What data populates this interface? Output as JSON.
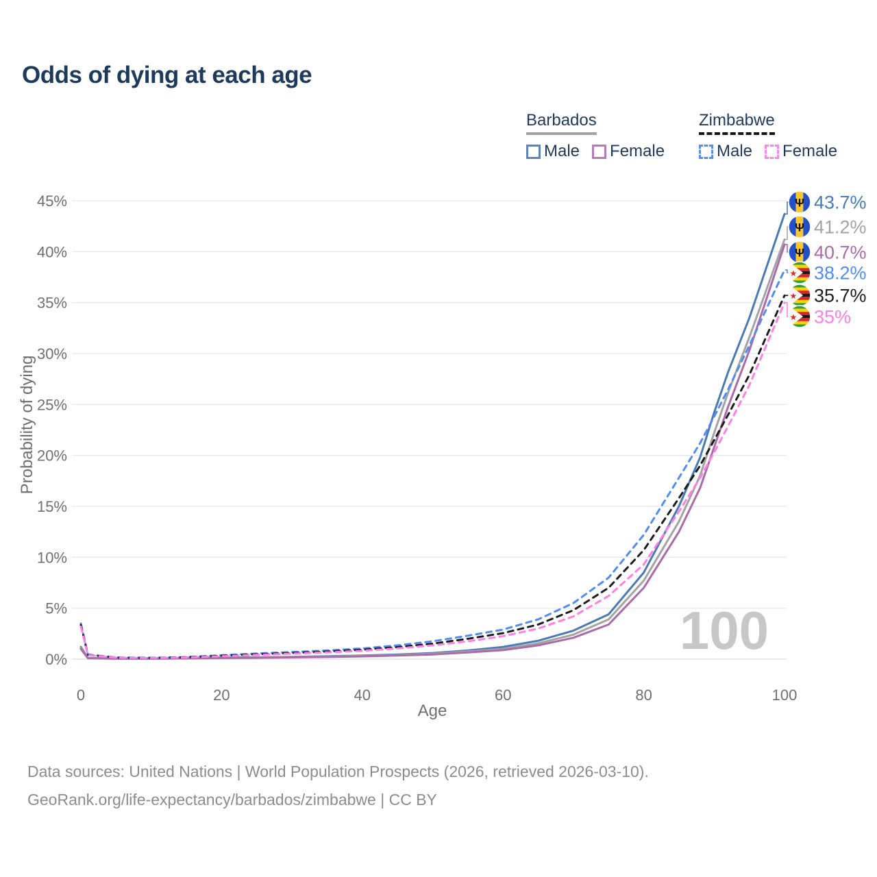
{
  "title": "Odds of dying at each age",
  "watermark": "100",
  "legend": {
    "groups": [
      {
        "label": "Barbados",
        "line_style": "solid",
        "underline_color": "#a2a2a2",
        "items": [
          {
            "label": "Male",
            "color": "#5b84bb"
          },
          {
            "label": "Female",
            "color": "#b87cb4"
          }
        ]
      },
      {
        "label": "Zimbabwe",
        "line_style": "dashed",
        "underline_color": "#161616",
        "items": [
          {
            "label": "Male",
            "color": "#5b8df0"
          },
          {
            "label": "Female",
            "color": "#fb85e8"
          }
        ]
      }
    ]
  },
  "footer": {
    "line1": "Data sources: United Nations | World Population Prospects (2026, retrieved 2026-03-10).",
    "line2": "GeoRank.org/life-expectancy/barbados/zimbabwe | CC BY"
  },
  "chart_data": {
    "type": "line",
    "title": "Odds of dying at each age",
    "xlabel": "Age",
    "ylabel": "Probability of dying",
    "xlim": [
      0,
      100
    ],
    "ylim": [
      0,
      45
    ],
    "grid": "horizontal",
    "legend_position": "top-right",
    "x_ticks": [
      0,
      20,
      40,
      60,
      80,
      100
    ],
    "x_tick_labels": [
      "0",
      "20",
      "40",
      "60",
      "80",
      "100"
    ],
    "y_ticks": [
      0,
      5,
      10,
      15,
      20,
      25,
      30,
      35,
      40,
      45
    ],
    "y_tick_labels": [
      "0%",
      "5%",
      "10%",
      "15%",
      "20%",
      "25%",
      "30%",
      "35%",
      "40%",
      "45%"
    ],
    "x": [
      0,
      1,
      5,
      10,
      15,
      20,
      25,
      30,
      35,
      40,
      45,
      50,
      55,
      60,
      65,
      70,
      75,
      80,
      85,
      88,
      90,
      92,
      95,
      100
    ],
    "series": [
      {
        "name": "Barbados Male",
        "country": "Barbados",
        "sex": "Male",
        "line": "solid",
        "color": "#4a7ab5",
        "flag": "barbados-flag-icon",
        "end_label": "43.7%",
        "end_value": 43.7,
        "values": [
          1.2,
          0.12,
          0.06,
          0.06,
          0.1,
          0.15,
          0.18,
          0.22,
          0.28,
          0.35,
          0.45,
          0.6,
          0.85,
          1.2,
          1.8,
          2.8,
          4.4,
          8.5,
          15.0,
          19.8,
          24.2,
          28.2,
          33.5,
          43.7
        ]
      },
      {
        "name": "Barbados Total",
        "country": "Barbados",
        "sex": "Both",
        "line": "solid",
        "color": "#a3a3a3",
        "flag": "barbados-flag-icon",
        "end_label": "41.2%",
        "end_value": 41.2,
        "values": [
          1.1,
          0.1,
          0.05,
          0.05,
          0.09,
          0.13,
          0.16,
          0.2,
          0.25,
          0.31,
          0.4,
          0.53,
          0.75,
          1.0,
          1.55,
          2.4,
          3.9,
          7.7,
          13.5,
          18.0,
          22.2,
          26.2,
          31.6,
          41.2
        ]
      },
      {
        "name": "Barbados Female",
        "country": "Barbados",
        "sex": "Female",
        "line": "solid",
        "color": "#ab6aa8",
        "flag": "barbados-flag-icon",
        "end_label": "40.7%",
        "end_value": 40.7,
        "values": [
          1.0,
          0.09,
          0.04,
          0.04,
          0.07,
          0.1,
          0.13,
          0.17,
          0.21,
          0.27,
          0.35,
          0.46,
          0.65,
          0.88,
          1.35,
          2.1,
          3.4,
          7.0,
          12.5,
          16.8,
          20.8,
          24.8,
          30.3,
          40.7
        ]
      },
      {
        "name": "Zimbabwe Male",
        "country": "Zimbabwe",
        "sex": "Male",
        "line": "dashed",
        "color": "#528cf0",
        "flag": "zimbabwe-flag-icon",
        "end_label": "38.2%",
        "end_value": 38.2,
        "values": [
          3.5,
          0.45,
          0.16,
          0.13,
          0.2,
          0.38,
          0.55,
          0.7,
          0.85,
          1.05,
          1.35,
          1.75,
          2.3,
          2.9,
          3.9,
          5.5,
          8.0,
          12.2,
          17.8,
          21.2,
          23.8,
          26.5,
          30.8,
          38.2
        ]
      },
      {
        "name": "Zimbabwe Total",
        "country": "Zimbabwe",
        "sex": "Both",
        "line": "dashed",
        "color": "#1c1c1c",
        "flag": "zimbabwe-flag-icon",
        "end_label": "35.7%",
        "end_value": 35.7,
        "values": [
          3.35,
          0.42,
          0.15,
          0.12,
          0.18,
          0.33,
          0.48,
          0.6,
          0.74,
          0.92,
          1.18,
          1.52,
          2.0,
          2.55,
          3.4,
          4.8,
          7.0,
          10.7,
          15.8,
          19.0,
          21.5,
          24.0,
          27.9,
          35.7
        ]
      },
      {
        "name": "Zimbabwe Female",
        "country": "Zimbabwe",
        "sex": "Female",
        "line": "dashed",
        "color": "#ff80e5",
        "flag": "zimbabwe-flag-icon",
        "end_label": "35%",
        "end_value": 35.0,
        "values": [
          3.2,
          0.4,
          0.14,
          0.11,
          0.16,
          0.28,
          0.42,
          0.54,
          0.66,
          0.82,
          1.05,
          1.35,
          1.75,
          2.25,
          3.0,
          4.2,
          6.2,
          9.3,
          14.5,
          17.8,
          20.3,
          22.9,
          26.9,
          35.0
        ]
      }
    ]
  }
}
